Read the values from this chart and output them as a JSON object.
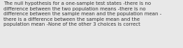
{
  "text": "The null hypothesis for a one-sample test states -there is no\ndifference between the two population means -there is no\ndifference between the sample mean and the population mean -\nthere is a difference between the sample mean and the\npopulation mean -None of the other 3 choices is correct",
  "bg_color": "#e8e8e8",
  "text_color": "#333333",
  "font_size": 5.0,
  "figwidth": 2.62,
  "figheight": 0.69,
  "dpi": 100
}
